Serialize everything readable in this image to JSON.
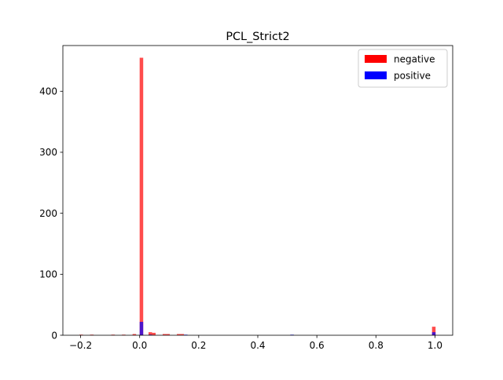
{
  "chart_data": {
    "type": "bar",
    "title": "PCL_Strict2",
    "xlabel": "",
    "ylabel": "",
    "xlim": [
      -0.26,
      1.06
    ],
    "ylim": [
      0,
      475
    ],
    "xticks": [
      -0.2,
      0.0,
      0.2,
      0.4,
      0.6,
      0.8,
      1.0
    ],
    "xtick_labels": [
      "−0.2",
      "0.0",
      "0.2",
      "0.4",
      "0.6",
      "0.8",
      "1.0"
    ],
    "yticks": [
      0,
      100,
      200,
      300,
      400
    ],
    "ytick_labels": [
      "0",
      "100",
      "200",
      "300",
      "400"
    ],
    "bin_width": 0.012,
    "legend_position": "top-right",
    "series": [
      {
        "name": "negative",
        "color": "#ff0000",
        "bins": [
          {
            "x": -0.204,
            "value": 1
          },
          {
            "x": -0.168,
            "value": 1
          },
          {
            "x": -0.096,
            "value": 1
          },
          {
            "x": -0.06,
            "value": 1
          },
          {
            "x": -0.024,
            "value": 2
          },
          {
            "x": 0.0,
            "value": 455
          },
          {
            "x": 0.03,
            "value": 5
          },
          {
            "x": 0.042,
            "value": 4
          },
          {
            "x": 0.078,
            "value": 2
          },
          {
            "x": 0.09,
            "value": 2
          },
          {
            "x": 0.126,
            "value": 2
          },
          {
            "x": 0.138,
            "value": 2
          },
          {
            "x": 0.99,
            "value": 14
          }
        ]
      },
      {
        "name": "positive",
        "color": "#0000ff",
        "bins": [
          {
            "x": 0.0,
            "value": 22
          },
          {
            "x": 0.03,
            "value": 1
          },
          {
            "x": 0.15,
            "value": 1
          },
          {
            "x": 0.51,
            "value": 1
          },
          {
            "x": 0.99,
            "value": 5
          }
        ]
      }
    ]
  }
}
